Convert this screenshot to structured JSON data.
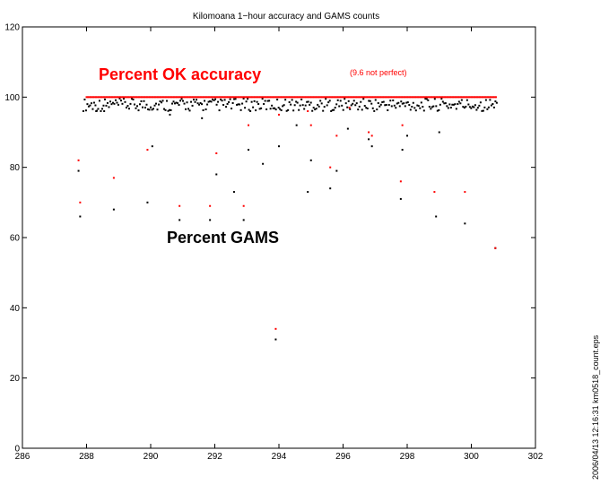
{
  "chart_data": {
    "type": "scatter",
    "title": "Kilomoana 1−hour accuracy and GAMS counts",
    "xlabel": "",
    "ylabel": "",
    "xlim": [
      286,
      302
    ],
    "ylim": [
      0,
      120
    ],
    "xticks": [
      "286",
      "288",
      "290",
      "292",
      "294",
      "296",
      "298",
      "300",
      "302"
    ],
    "yticks": [
      "0",
      "20",
      "40",
      "60",
      "80",
      "100",
      "120"
    ],
    "grid": false,
    "annotations": {
      "ok_label": "Percent OK accuracy",
      "ok_note": "(9.6 not perfect)",
      "gams_label": "Percent GAMS"
    },
    "side_label": "2006/04/13 12:16:31   km0518_count.eps",
    "colors": {
      "ok": "#ff0000",
      "gams": "#000000"
    },
    "series": [
      {
        "name": "Percent OK accuracy",
        "color": "#ff0000",
        "x": [
          287.75,
          287.8,
          288.85,
          289.9,
          290.9,
          291.85,
          292.05,
          292.9,
          293.05,
          293.9,
          294.0,
          294.9,
          295.0,
          295.6,
          295.8,
          296.2,
          296.8,
          296.9,
          297.8,
          297.85,
          298.85,
          299.8,
          300.75
        ],
        "y": [
          82,
          70,
          77,
          85,
          69,
          69,
          84,
          69,
          92,
          34,
          95,
          96,
          92,
          80,
          89,
          97,
          90,
          89,
          76,
          92,
          73,
          73,
          57
        ],
        "band": {
          "x_start": 288.0,
          "x_end": 300.8,
          "step": 0.042,
          "y": 100
        }
      },
      {
        "name": "Percent GAMS",
        "color": "#000000",
        "x": [
          287.75,
          287.8,
          288.3,
          288.55,
          288.85,
          289.9,
          290.05,
          290.6,
          290.9,
          291.6,
          291.85,
          292.05,
          292.6,
          292.9,
          293.05,
          293.5,
          293.9,
          294.0,
          294.55,
          294.9,
          295.0,
          295.6,
          295.8,
          296.15,
          296.8,
          296.9,
          297.8,
          297.85,
          298.0,
          298.9,
          299.0,
          299.8,
          300.75
        ],
        "y": [
          79,
          66,
          96,
          96,
          68,
          70,
          86,
          95,
          65,
          94,
          65,
          78,
          73,
          65,
          85,
          81,
          31,
          86,
          92,
          73,
          82,
          74,
          79,
          91,
          88,
          86,
          71,
          85,
          89,
          66,
          90,
          64,
          57
        ],
        "band": {
          "x_start": 287.9,
          "x_end": 300.8,
          "step": 0.042,
          "y_low": 96,
          "y_high": 99.6
        }
      }
    ]
  }
}
